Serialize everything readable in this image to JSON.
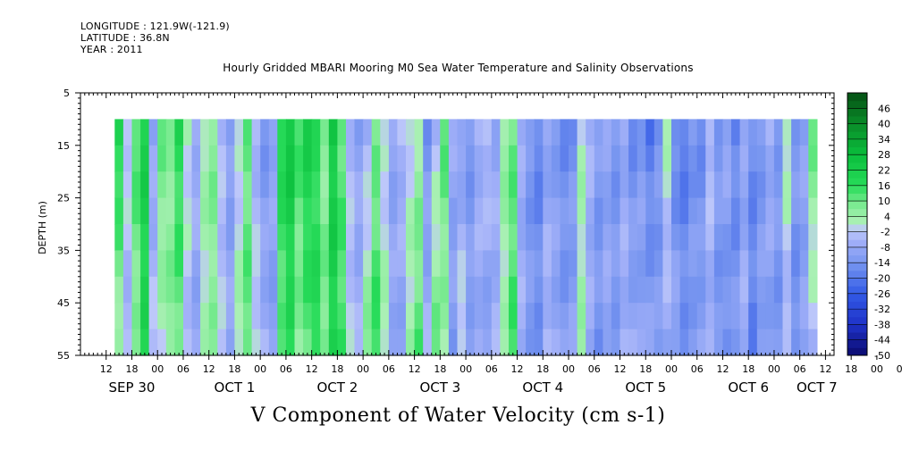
{
  "header": {
    "longitude": "LONGITUDE : 121.9W(-121.9)",
    "latitude": "LATITUDE : 36.8N",
    "year": "YEAR : 2011"
  },
  "colors": {
    "data_lim_strong_green": "#0cd840",
    "mid_green": "#90f0a0",
    "mid_blue": "#a8b8f8",
    "strong_blue": "#2858e8"
  },
  "chart_data": {
    "type": "heatmap",
    "title": "Hourly Gridded MBARI Mooring M0 Sea Water Temperature and Salinity Observations",
    "xlabel": "V Component of Water Velocity (cm s-1)",
    "ylabel": "DEPTH (m)",
    "y_axis": {
      "range": [
        5,
        55
      ],
      "reversed": true,
      "ticks": [
        5,
        15,
        25,
        35,
        45,
        55
      ],
      "data_range": [
        10,
        55
      ]
    },
    "x_axis": {
      "hour_tick_labels": [
        "12",
        "18",
        "00",
        "06",
        "12",
        "18",
        "00",
        "06",
        "12",
        "18",
        "00",
        "06",
        "12",
        "18",
        "00",
        "06",
        "12",
        "18",
        "00",
        "06",
        "12",
        "18",
        "00",
        "06",
        "12",
        "18",
        "00",
        "06",
        "12",
        "18",
        "00",
        "06"
      ],
      "date_labels": [
        "SEP 30",
        "OCT  1",
        "OCT  2",
        "OCT  3",
        "OCT  4",
        "OCT  5",
        "OCT  6",
        "OCT  7"
      ]
    },
    "colorbar": {
      "labels": [
        "46",
        "40",
        "34",
        "28",
        "22",
        "16",
        "10",
        "4",
        "-2",
        "-8",
        "-14",
        "-20",
        "-26",
        "-32",
        "-38",
        "-44",
        "-50"
      ],
      "range": [
        -50,
        52
      ]
    },
    "time_profile_v_by_hour": [
      [
        8,
        20,
        3
      ],
      [
        10,
        0,
        -6
      ],
      [
        12,
        14,
        6
      ],
      [
        14,
        22,
        18
      ],
      [
        16,
        -10,
        -2
      ],
      [
        18,
        10,
        2
      ],
      [
        20,
        6,
        8
      ],
      [
        22,
        18,
        10
      ],
      [
        24,
        2,
        -4
      ],
      [
        26,
        -6,
        -10
      ],
      [
        28,
        4,
        2
      ],
      [
        30,
        8,
        6
      ],
      [
        32,
        -4,
        -2
      ],
      [
        34,
        -12,
        -8
      ],
      [
        36,
        -2,
        4
      ],
      [
        38,
        10,
        12
      ],
      [
        40,
        -6,
        0
      ],
      [
        42,
        -14,
        -6
      ],
      [
        44,
        -8,
        -12
      ],
      [
        46,
        20,
        10
      ],
      [
        48,
        26,
        16
      ],
      [
        50,
        14,
        6
      ],
      [
        52,
        22,
        12
      ],
      [
        54,
        16,
        18
      ],
      [
        56,
        6,
        10
      ],
      [
        58,
        24,
        20
      ],
      [
        60,
        12,
        14
      ],
      [
        62,
        -4,
        -2
      ],
      [
        64,
        -10,
        -6
      ],
      [
        66,
        -6,
        8
      ],
      [
        68,
        8,
        16
      ],
      [
        70,
        -2,
        4
      ],
      [
        72,
        -10,
        -8
      ],
      [
        74,
        -4,
        -10
      ],
      [
        76,
        0,
        4
      ],
      [
        78,
        4,
        12
      ],
      [
        80,
        -14,
        -6
      ],
      [
        82,
        -4,
        10
      ],
      [
        84,
        12,
        4
      ],
      [
        86,
        -8,
        -12
      ],
      [
        88,
        -12,
        2
      ],
      [
        90,
        -14,
        -10
      ],
      [
        92,
        -6,
        -8
      ],
      [
        94,
        -2,
        -12
      ],
      [
        96,
        -8,
        -6
      ],
      [
        98,
        6,
        2
      ],
      [
        100,
        10,
        14
      ],
      [
        102,
        -8,
        -6
      ],
      [
        104,
        -14,
        -12
      ],
      [
        106,
        -18,
        -14
      ],
      [
        108,
        -10,
        -4
      ],
      [
        110,
        -12,
        -8
      ],
      [
        112,
        -16,
        -12
      ],
      [
        114,
        -14,
        -10
      ],
      [
        116,
        2,
        4
      ],
      [
        118,
        -6,
        -8
      ],
      [
        120,
        -12,
        -14
      ],
      [
        122,
        -10,
        -8
      ],
      [
        124,
        -14,
        -12
      ],
      [
        126,
        -8,
        -6
      ],
      [
        128,
        -16,
        -8
      ],
      [
        130,
        -12,
        -10
      ],
      [
        132,
        -20,
        -10
      ],
      [
        134,
        -14,
        -12
      ],
      [
        136,
        2,
        -8
      ],
      [
        138,
        -18,
        -8
      ],
      [
        140,
        -20,
        -14
      ],
      [
        142,
        -14,
        -12
      ],
      [
        144,
        -16,
        -10
      ],
      [
        146,
        -2,
        -8
      ],
      [
        148,
        -12,
        -14
      ],
      [
        150,
        -8,
        -16
      ],
      [
        152,
        -18,
        -12
      ],
      [
        154,
        -10,
        -6
      ],
      [
        156,
        -16,
        -18
      ],
      [
        158,
        -14,
        -10
      ],
      [
        160,
        -6,
        -12
      ],
      [
        162,
        -12,
        -14
      ],
      [
        164,
        4,
        -6
      ],
      [
        166,
        -12,
        -16
      ],
      [
        168,
        -10,
        -10
      ],
      [
        170,
        10,
        -4
      ]
    ]
  }
}
